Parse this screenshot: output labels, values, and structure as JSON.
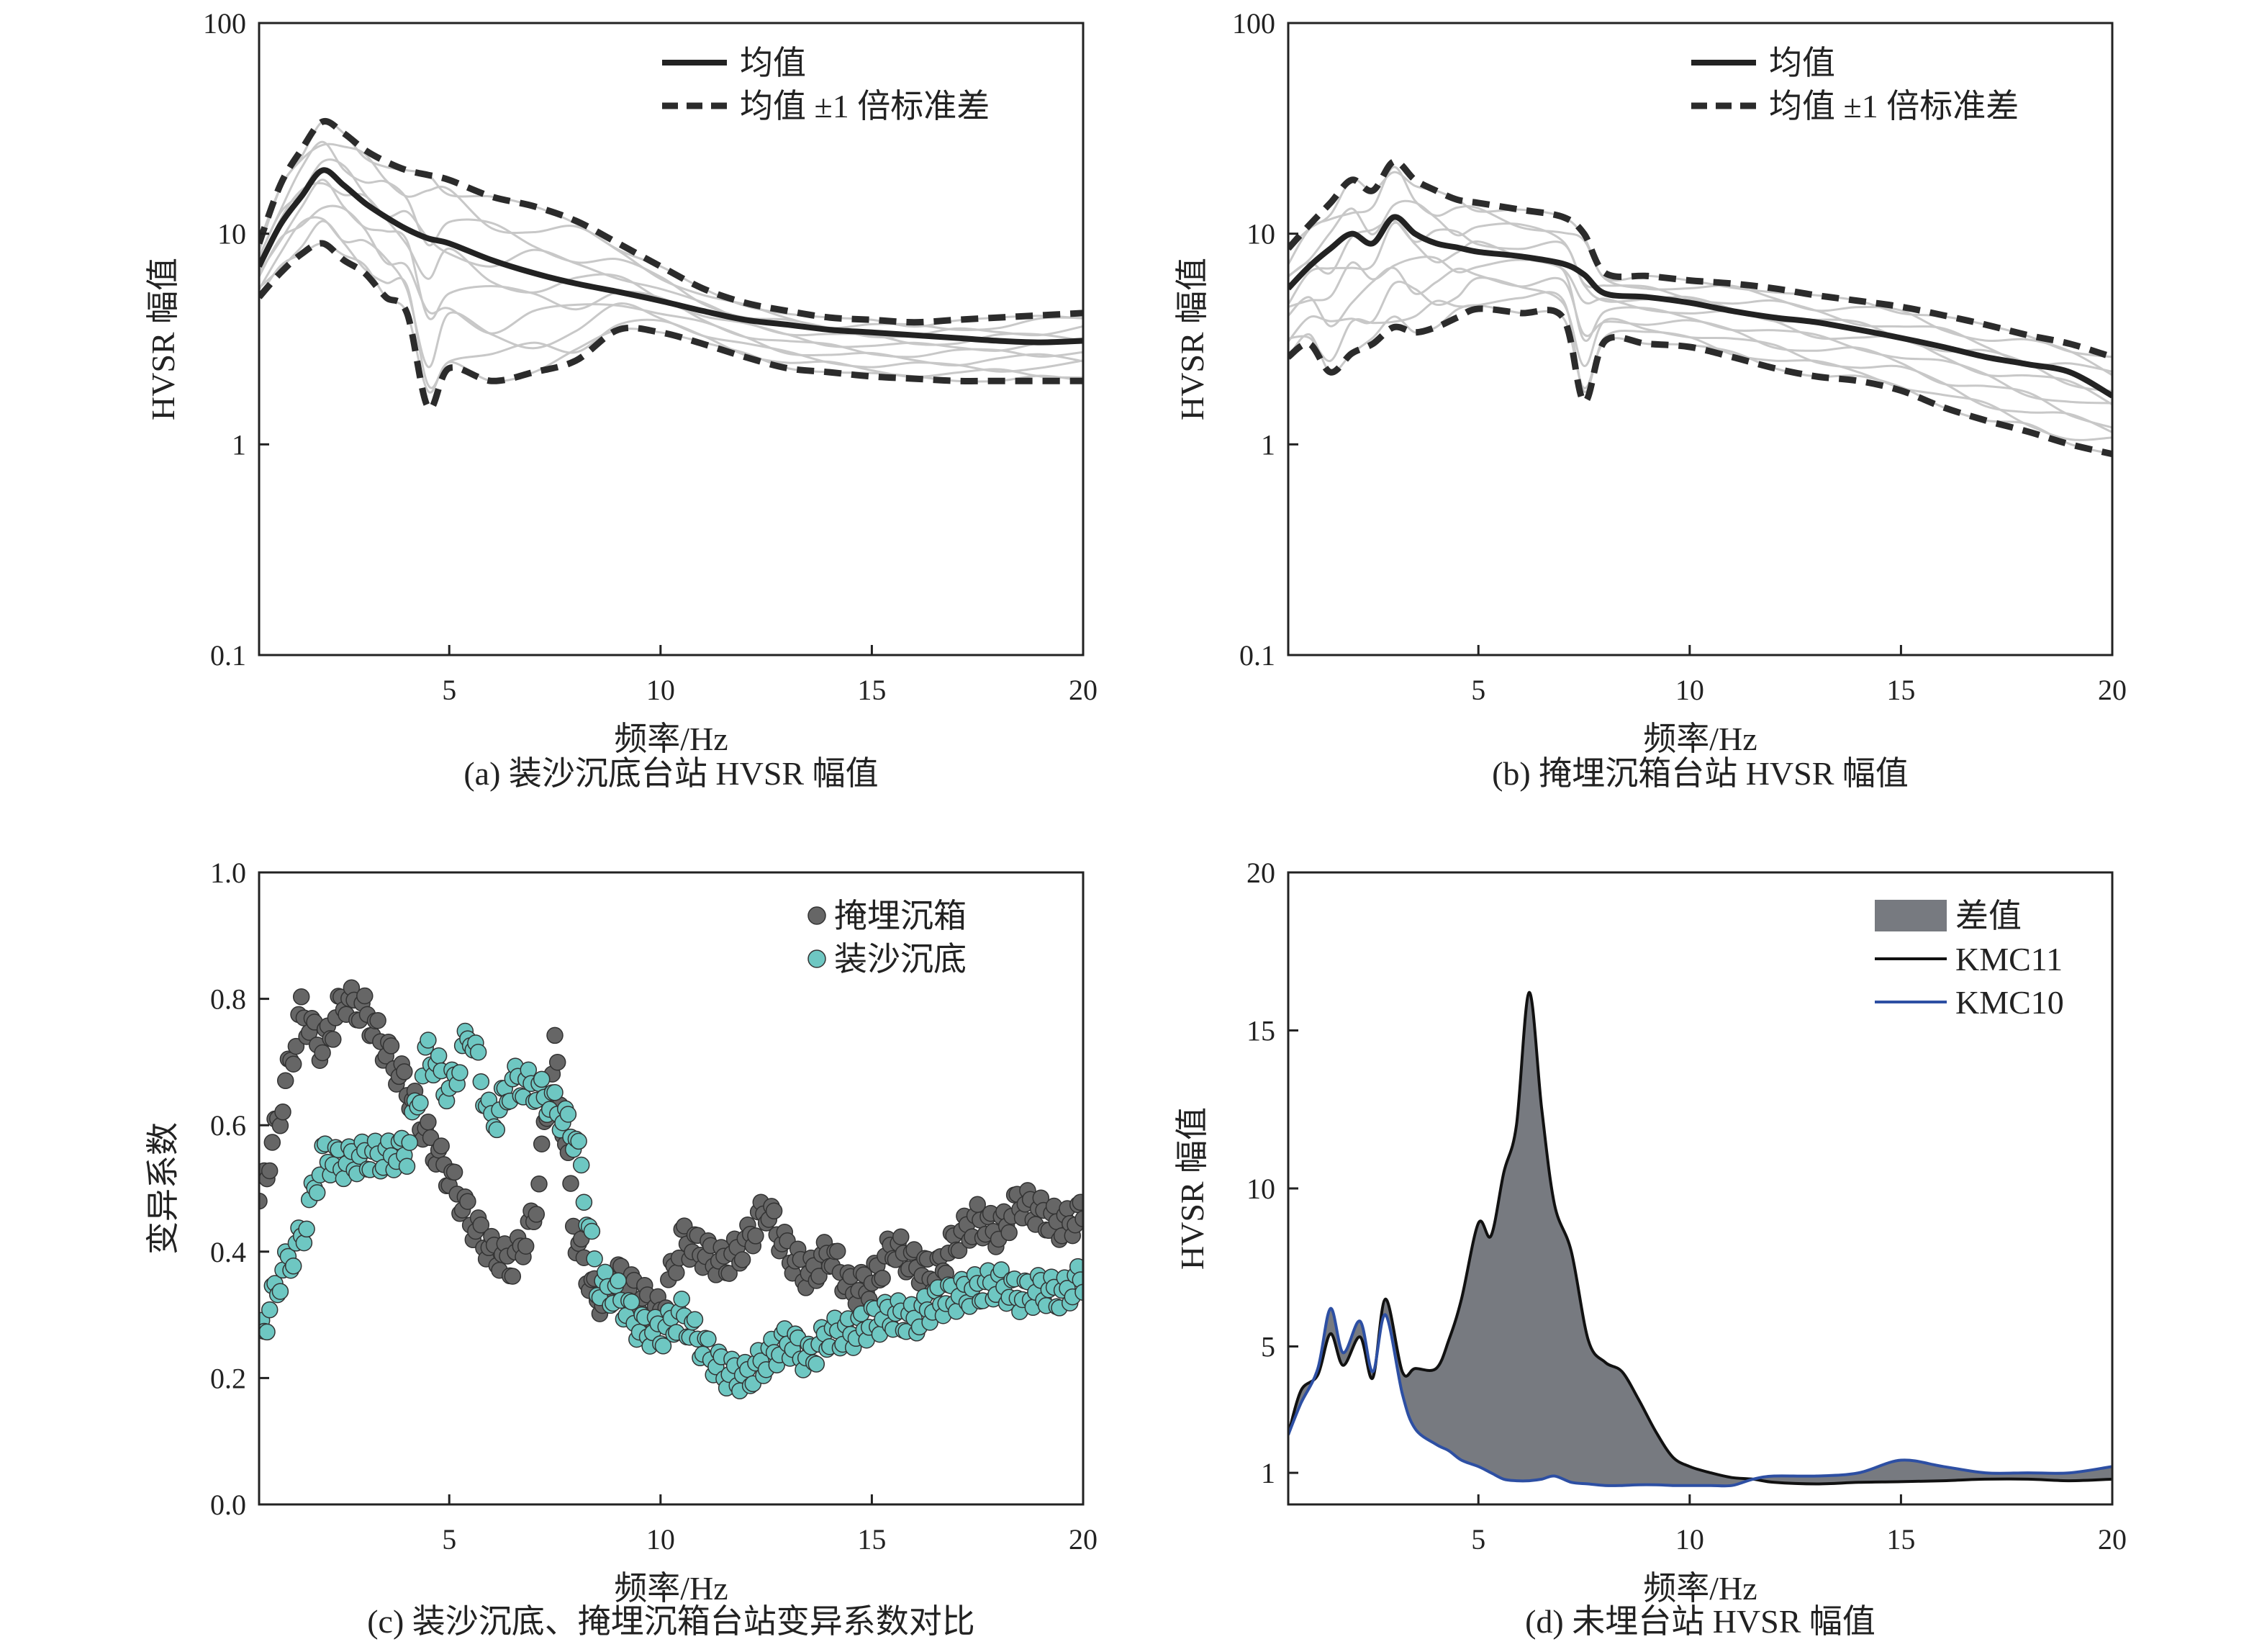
{
  "colors": {
    "mean": "#222222",
    "std": "#2b2b2b",
    "background_curves": "#c8c8c8",
    "dark_markers": "#666666",
    "teal_markers": "#6ec7c2",
    "diff_fill": "#777a80",
    "kmc11": "#111111",
    "kmc10": "#2d4fa3"
  },
  "chart_data": [
    {
      "type": "line",
      "panel": "a",
      "caption": "(a) 装沙沉底台站 HVSR 幅值",
      "xlabel": "频率/Hz",
      "ylabel": "HVSR 幅值",
      "xlim": [
        0.5,
        20
      ],
      "ylim": [
        0.1,
        100
      ],
      "yscale": "log",
      "xticks": [
        "5",
        "10",
        "15",
        "20"
      ],
      "yticks": [
        "0.1",
        "1",
        "10",
        "100"
      ],
      "legend": [
        "均值",
        "均值 ±1 倍标准差"
      ],
      "legend_position": "top-right",
      "x": [
        0.5,
        1,
        1.5,
        2,
        2.5,
        3,
        3.5,
        4,
        4.5,
        5,
        6,
        7,
        8,
        9,
        10,
        11,
        12,
        13,
        14,
        15,
        16,
        17,
        18,
        19,
        20
      ],
      "series": [
        {
          "name": "均值",
          "values": [
            7,
            11,
            15,
            20,
            17,
            14,
            12,
            10.5,
            9.5,
            9,
            7.5,
            6.5,
            5.8,
            5.3,
            4.8,
            4.3,
            3.9,
            3.7,
            3.5,
            3.4,
            3.3,
            3.2,
            3.1,
            3.05,
            3.1
          ]
        },
        {
          "name": "均值 ±1 倍标准差",
          "bound": "upper",
          "values": [
            9,
            17,
            25,
            34,
            30,
            25,
            22,
            20,
            19,
            18,
            15,
            13.5,
            11.5,
            9,
            7,
            5.5,
            4.7,
            4.3,
            4.0,
            3.9,
            3.8,
            3.9,
            4.0,
            4.1,
            4.2
          ]
        },
        {
          "name": "均值 ±1 倍标准差",
          "bound": "lower",
          "values": [
            5,
            6.5,
            8,
            9,
            7.5,
            6.5,
            5,
            4.2,
            1.5,
            2.3,
            2,
            2.2,
            2.5,
            3.5,
            3.4,
            3.0,
            2.6,
            2.3,
            2.2,
            2.1,
            2.05,
            2.0,
            2.0,
            2.0,
            2.0
          ]
        }
      ]
    },
    {
      "type": "line",
      "panel": "b",
      "caption": "(b) 掩埋沉箱台站 HVSR 幅值",
      "xlabel": "频率/Hz",
      "ylabel": "HVSR 幅值",
      "xlim": [
        0.5,
        20
      ],
      "ylim": [
        0.1,
        100
      ],
      "yscale": "log",
      "xticks": [
        "5",
        "10",
        "15",
        "20"
      ],
      "yticks": [
        "0.1",
        "1",
        "10",
        "100"
      ],
      "legend": [
        "均值",
        "均值 ±1 倍标准差"
      ],
      "legend_position": "top-right",
      "x": [
        0.5,
        1,
        1.5,
        2,
        2.5,
        3,
        3.5,
        4,
        4.5,
        5,
        6,
        7,
        7.5,
        8,
        9,
        10,
        11,
        12,
        13,
        14,
        15,
        16,
        17,
        18,
        19,
        20
      ],
      "series": [
        {
          "name": "均值",
          "values": [
            5.5,
            7,
            8.5,
            10,
            9,
            12,
            10,
            9,
            8.6,
            8.2,
            7.8,
            7.2,
            6.4,
            5.2,
            5.0,
            4.7,
            4.3,
            4.0,
            3.8,
            3.5,
            3.2,
            2.9,
            2.6,
            2.4,
            2.2,
            1.7
          ]
        },
        {
          "name": "均值 ±1 倍标准差",
          "bound": "upper",
          "values": [
            8.5,
            11,
            14,
            18,
            16,
            22,
            18,
            16,
            14.5,
            14,
            13,
            12,
            10,
            6.5,
            6.3,
            6.0,
            5.8,
            5.5,
            5.1,
            4.8,
            4.5,
            4.1,
            3.7,
            3.3,
            3.0,
            2.6
          ]
        },
        {
          "name": "均值 ±1 倍标准差",
          "bound": "lower",
          "values": [
            2.6,
            3,
            2.2,
            2.7,
            3,
            3.6,
            3.4,
            3.6,
            4.0,
            4.4,
            4.2,
            4.0,
            1.6,
            3.1,
            3.0,
            2.9,
            2.6,
            2.3,
            2.1,
            2.0,
            1.8,
            1.5,
            1.3,
            1.15,
            1.0,
            0.9
          ]
        }
      ]
    },
    {
      "type": "scatter",
      "panel": "c",
      "caption": "(c) 装沙沉底、掩埋沉箱台站变异系数对比",
      "xlabel": "频率/Hz",
      "ylabel": "变异系数",
      "xlim": [
        0.5,
        20
      ],
      "ylim": [
        0,
        1
      ],
      "xticks": [
        "5",
        "10",
        "15",
        "20"
      ],
      "yticks": [
        "0.0",
        "0.2",
        "0.4",
        "0.6",
        "0.8",
        "1.0"
      ],
      "legend_position": "top-right",
      "x": [
        0.5,
        1,
        1.5,
        2,
        2.5,
        3,
        3.5,
        4,
        4.5,
        5,
        5.5,
        6,
        6.5,
        7,
        7.5,
        8,
        8.5,
        9,
        9.5,
        10,
        10.5,
        11,
        11.5,
        12,
        12.5,
        13,
        13.5,
        14,
        14.5,
        15,
        15.5,
        16,
        16.5,
        17,
        17.5,
        18,
        18.5,
        19,
        19.5,
        20
      ],
      "series": [
        {
          "name": "掩埋沉箱",
          "values": [
            0.48,
            0.62,
            0.78,
            0.72,
            0.8,
            0.78,
            0.72,
            0.66,
            0.58,
            0.52,
            0.45,
            0.4,
            0.38,
            0.45,
            0.72,
            0.42,
            0.32,
            0.36,
            0.33,
            0.3,
            0.42,
            0.4,
            0.38,
            0.41,
            0.47,
            0.4,
            0.36,
            0.4,
            0.34,
            0.35,
            0.41,
            0.38,
            0.36,
            0.42,
            0.45,
            0.43,
            0.48,
            0.46,
            0.44,
            0.46
          ]
        },
        {
          "name": "装沙沉底",
          "values": [
            0.26,
            0.36,
            0.42,
            0.55,
            0.54,
            0.55,
            0.55,
            0.56,
            0.72,
            0.65,
            0.75,
            0.6,
            0.67,
            0.66,
            0.63,
            0.58,
            0.35,
            0.33,
            0.28,
            0.27,
            0.3,
            0.25,
            0.21,
            0.2,
            0.23,
            0.26,
            0.23,
            0.27,
            0.27,
            0.29,
            0.3,
            0.29,
            0.32,
            0.33,
            0.34,
            0.35,
            0.33,
            0.34,
            0.33,
            0.36
          ]
        }
      ]
    },
    {
      "type": "area",
      "panel": "d",
      "caption": "(d) 未埋台站 HVSR 幅值",
      "xlabel": "频率/Hz",
      "ylabel": "HVSR 幅值",
      "xlim": [
        0.5,
        20
      ],
      "ylim": [
        0,
        20
      ],
      "xticks": [
        "5",
        "10",
        "15",
        "20"
      ],
      "yticks": [
        "1",
        "5",
        "10",
        "15",
        "20"
      ],
      "legend": [
        "差值",
        "KMC11",
        "KMC10"
      ],
      "legend_position": "top-right",
      "x": [
        0.5,
        0.8,
        1.2,
        1.5,
        1.8,
        2.2,
        2.5,
        2.8,
        3.2,
        3.5,
        4,
        4.3,
        4.6,
        5,
        5.3,
        5.6,
        5.9,
        6.2,
        6.5,
        6.8,
        7.2,
        7.6,
        8.0,
        8.4,
        8.8,
        9.2,
        9.6,
        10,
        10.5,
        11,
        11.5,
        12,
        13,
        14,
        15,
        16,
        17,
        18,
        19,
        20
      ],
      "series": [
        {
          "name": "KMC11",
          "values": [
            2.2,
            3.6,
            4.1,
            5.4,
            4.4,
            5.3,
            4.0,
            6.5,
            4.2,
            4.3,
            4.3,
            5.2,
            6.5,
            8.9,
            8.5,
            10.5,
            12.0,
            16.2,
            12.5,
            9.5,
            8.0,
            5.2,
            4.5,
            4.2,
            3.3,
            2.3,
            1.5,
            1.2,
            1.0,
            0.85,
            0.8,
            0.7,
            0.65,
            0.7,
            0.72,
            0.75,
            0.8,
            0.8,
            0.75,
            0.8
          ]
        },
        {
          "name": "KMC10",
          "values": [
            2.2,
            3.2,
            4.3,
            6.2,
            4.8,
            5.8,
            4.2,
            6.0,
            3.5,
            2.4,
            1.9,
            1.7,
            1.4,
            1.2,
            1.0,
            0.8,
            0.75,
            0.75,
            0.8,
            0.9,
            0.7,
            0.65,
            0.6,
            0.6,
            0.62,
            0.62,
            0.6,
            0.6,
            0.6,
            0.6,
            0.8,
            0.9,
            0.9,
            1.0,
            1.4,
            1.2,
            1.0,
            1.0,
            1.0,
            1.2
          ]
        }
      ]
    }
  ]
}
